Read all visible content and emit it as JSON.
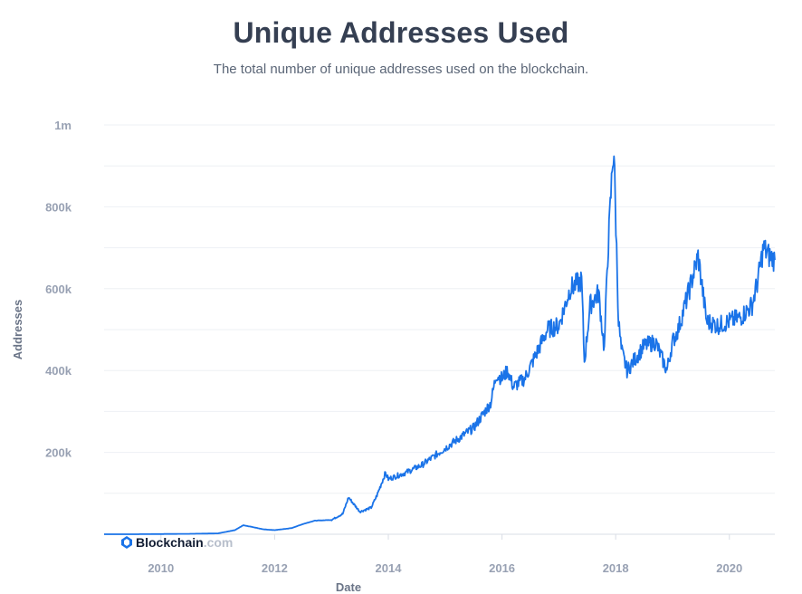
{
  "header": {
    "title": "Unique Addresses Used",
    "subtitle": "The total number of unique addresses used on the blockchain."
  },
  "watermark": {
    "brand": "Blockchain",
    "domain": ".com"
  },
  "colors": {
    "series": "#1a73e8",
    "grid": "#eef0f4",
    "axis": "#d9dde5"
  },
  "chart_data": {
    "type": "line",
    "title": "Unique Addresses Used",
    "xlabel": "Date",
    "ylabel": "Addresses",
    "xlim": [
      2009.0,
      2020.8
    ],
    "ylim": [
      0,
      1000000
    ],
    "x_ticks": [
      {
        "value": 2010,
        "label": "2010"
      },
      {
        "value": 2012,
        "label": "2012"
      },
      {
        "value": 2014,
        "label": "2014"
      },
      {
        "value": 2016,
        "label": "2016"
      },
      {
        "value": 2018,
        "label": "2018"
      },
      {
        "value": 2020,
        "label": "2020"
      }
    ],
    "y_ticks": [
      {
        "value": 200000,
        "label": "200k"
      },
      {
        "value": 400000,
        "label": "400k"
      },
      {
        "value": 600000,
        "label": "600k"
      },
      {
        "value": 800000,
        "label": "800k"
      },
      {
        "value": 1000000,
        "label": "1m"
      }
    ],
    "grid": true,
    "series": [
      {
        "name": "Unique Addresses Used",
        "x": [
          2009.0,
          2009.5,
          2010.0,
          2010.5,
          2011.0,
          2011.3,
          2011.45,
          2011.6,
          2011.8,
          2012.0,
          2012.3,
          2012.5,
          2012.7,
          2013.0,
          2013.2,
          2013.3,
          2013.5,
          2013.7,
          2013.8,
          2013.95,
          2014.0,
          2014.3,
          2014.6,
          2014.9,
          2015.2,
          2015.5,
          2015.8,
          2015.9,
          2016.0,
          2016.1,
          2016.2,
          2016.4,
          2016.6,
          2016.8,
          2017.0,
          2017.2,
          2017.4,
          2017.45,
          2017.55,
          2017.7,
          2017.8,
          2017.85,
          2017.95,
          2017.97,
          2018.05,
          2018.1,
          2018.2,
          2018.35,
          2018.5,
          2018.7,
          2018.9,
          2019.0,
          2019.1,
          2019.3,
          2019.45,
          2019.6,
          2019.8,
          2020.0,
          2020.2,
          2020.4,
          2020.5,
          2020.6,
          2020.7,
          2020.8
        ],
        "values": [
          0,
          0,
          500,
          1000,
          2000,
          10000,
          22000,
          18000,
          12000,
          10000,
          15000,
          25000,
          33000,
          35000,
          50000,
          90000,
          55000,
          65000,
          95000,
          150000,
          135000,
          150000,
          170000,
          200000,
          230000,
          260000,
          320000,
          390000,
          380000,
          400000,
          360000,
          380000,
          440000,
          500000,
          510000,
          600000,
          620000,
          420000,
          560000,
          590000,
          450000,
          650000,
          920000,
          930000,
          520000,
          450000,
          400000,
          430000,
          460000,
          470000,
          400000,
          470000,
          500000,
          600000,
          680000,
          520000,
          510000,
          520000,
          530000,
          560000,
          620000,
          700000,
          680000,
          670000
        ]
      }
    ]
  }
}
